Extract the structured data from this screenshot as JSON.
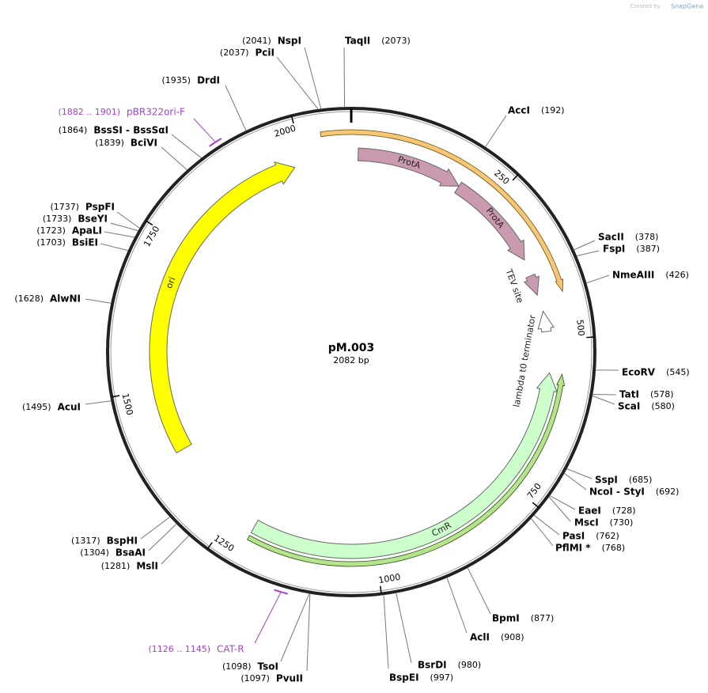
{
  "map": {
    "name": "pM.003",
    "length": {
      "value": 2082,
      "label": "2082 bp"
    },
    "ticks": [
      250,
      500,
      750,
      1000,
      1250,
      1500,
      1750,
      2000
    ]
  },
  "enzymes": [
    {
      "name": "NspI",
      "site": {
        "value": 2041,
        "label": "(2041)"
      }
    },
    {
      "name": "PciI",
      "site": {
        "value": 2037,
        "label": "(2037)"
      }
    },
    {
      "name": "TaqII",
      "site": {
        "value": 2073,
        "label": "(2073)"
      }
    },
    {
      "name": "DrdI",
      "site": {
        "value": 1935,
        "label": "(1935)"
      }
    },
    {
      "name": "BssSI - BssSαI",
      "site": {
        "value": 1864,
        "label": "(1864)"
      }
    },
    {
      "name": "BciVI",
      "site": {
        "value": 1839,
        "label": "(1839)"
      }
    },
    {
      "name": "PspFI",
      "site": {
        "value": 1737,
        "label": "(1737)"
      }
    },
    {
      "name": "BseYI",
      "site": {
        "value": 1733,
        "label": "(1733)"
      }
    },
    {
      "name": "ApaLI",
      "site": {
        "value": 1723,
        "label": "(1723)"
      }
    },
    {
      "name": "BsiEI",
      "site": {
        "value": 1703,
        "label": "(1703)"
      }
    },
    {
      "name": "AlwNI",
      "site": {
        "value": 1628,
        "label": "(1628)"
      }
    },
    {
      "name": "AcuI",
      "site": {
        "value": 1495,
        "label": "(1495)"
      }
    },
    {
      "name": "BspHI",
      "site": {
        "value": 1317,
        "label": "(1317)"
      }
    },
    {
      "name": "BsaAI",
      "site": {
        "value": 1304,
        "label": "(1304)"
      }
    },
    {
      "name": "MslI",
      "site": {
        "value": 1281,
        "label": "(1281)"
      }
    },
    {
      "name": "TsoI",
      "site": {
        "value": 1098,
        "label": "(1098)"
      }
    },
    {
      "name": "PvuII",
      "site": {
        "value": 1097,
        "label": "(1097)"
      }
    },
    {
      "name": "AccI",
      "site": {
        "value": 192,
        "label": "(192)"
      }
    },
    {
      "name": "SacII",
      "site": {
        "value": 378,
        "label": "(378)"
      }
    },
    {
      "name": "FspI",
      "site": {
        "value": 387,
        "label": "(387)"
      }
    },
    {
      "name": "NmeAIII",
      "site": {
        "value": 426,
        "label": "(426)"
      }
    },
    {
      "name": "EcoRV",
      "site": {
        "value": 545,
        "label": "(545)"
      }
    },
    {
      "name": "TatI",
      "site": {
        "value": 578,
        "label": "(578)"
      }
    },
    {
      "name": "ScaI",
      "site": {
        "value": 580,
        "label": "(580)"
      }
    },
    {
      "name": "SspI",
      "site": {
        "value": 685,
        "label": "(685)"
      }
    },
    {
      "name": "NcoI - StyI",
      "site": {
        "value": 692,
        "label": "(692)"
      }
    },
    {
      "name": "EaeI",
      "site": {
        "value": 728,
        "label": "(728)"
      }
    },
    {
      "name": "MscI",
      "site": {
        "value": 730,
        "label": "(730)"
      }
    },
    {
      "name": "PasI",
      "site": {
        "value": 762,
        "label": "(762)"
      }
    },
    {
      "name": "PflMI *",
      "site": {
        "value": 768,
        "label": "(768)"
      }
    },
    {
      "name": "BpmI",
      "site": {
        "value": 877,
        "label": "(877)"
      }
    },
    {
      "name": "AclI",
      "site": {
        "value": 908,
        "label": "(908)"
      }
    },
    {
      "name": "BsrDI",
      "site": {
        "value": 980,
        "label": "(980)"
      }
    },
    {
      "name": "BspEI",
      "site": {
        "value": 997,
        "label": "(997)"
      }
    }
  ],
  "primers": [
    {
      "name": "pBR322ori-F",
      "range": {
        "start": 1882,
        "end": 1901,
        "label": "(1882 .. 1901)"
      }
    },
    {
      "name": "CAT-R",
      "range": {
        "start": 1126,
        "end": 1145,
        "label": "(1126 .. 1145)"
      }
    }
  ],
  "features": [
    {
      "name": "ProtA"
    },
    {
      "name": "ProtA"
    },
    {
      "name": "TEV site"
    },
    {
      "name": "lambda t0 terminator"
    },
    {
      "name": "CmR"
    },
    {
      "name": "ori"
    }
  ],
  "watermark": {
    "prefix": "Created by",
    "brand": "SnapGene"
  }
}
